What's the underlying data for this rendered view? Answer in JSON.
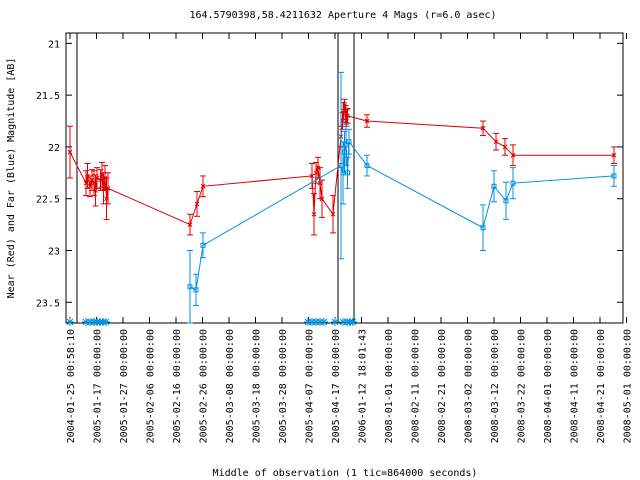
{
  "chart_data": {
    "type": "line",
    "title": "164.5790398,58.4211632   Aperture 4 Mags (r=6.0 asec)",
    "xlabel": "Middle of observation (1 tic=864000 seconds)",
    "ylabel": "Near (Red) and Far (Blue) Magnitude [AB]",
    "ylim": [
      23.7,
      20.9
    ],
    "y_inverted": true,
    "yticks": [
      "21",
      "21.5",
      "22",
      "22.5",
      "23",
      "23.5"
    ],
    "grid": false,
    "x_tick_labels": [
      "2004-01-25 00:58:10",
      "2005-01-17 00:00:00",
      "2005-01-27 00:00:00",
      "2005-02-06 00:00:00",
      "2005-02-16 00:00:00",
      "2005-02-26 00:00:00",
      "2005-03-08 00:00:00",
      "2005-03-18 00:00:00",
      "2005-03-28 00:00:00",
      "2005-04-07 00:00:00",
      "2005-04-17 00:00:00",
      "2006-01-12 18:01:43",
      "2008-01-01 00:00:00",
      "2008-02-11 00:00:00",
      "2008-02-21 00:00:00",
      "2008-03-02 00:00:00",
      "2008-03-12 00:00:00",
      "2008-03-22 00:00:00",
      "2008-04-01 00:00:00",
      "2008-04-11 00:00:00",
      "2008-04-21 00:00:00",
      "2008-05-01 00:00:00"
    ],
    "series": [
      {
        "color": "#e00000",
        "marker": "x",
        "points": [
          {
            "t": 0.0,
            "y": 22.05,
            "err": 0.25
          },
          {
            "t": 1.6,
            "y": 22.35,
            "err": 0.12
          },
          {
            "t": 1.75,
            "y": 22.28,
            "err": 0.12
          },
          {
            "t": 2.0,
            "y": 22.38,
            "err": 0.1
          },
          {
            "t": 2.2,
            "y": 22.32,
            "err": 0.1
          },
          {
            "t": 2.4,
            "y": 22.35,
            "err": 0.12
          },
          {
            "t": 2.55,
            "y": 22.42,
            "err": 0.15
          },
          {
            "t": 2.7,
            "y": 22.3,
            "err": 0.1
          },
          {
            "t": 3.05,
            "y": 22.32,
            "err": 0.1
          },
          {
            "t": 3.2,
            "y": 22.27,
            "err": 0.12
          },
          {
            "t": 3.35,
            "y": 22.4,
            "err": 0.15
          },
          {
            "t": 3.5,
            "y": 22.3,
            "err": 0.12
          },
          {
            "t": 3.65,
            "y": 22.5,
            "err": 0.2
          },
          {
            "t": 3.8,
            "y": 22.4,
            "err": 0.15
          },
          {
            "t": 12.0,
            "y": 22.75,
            "err": 0.1
          },
          {
            "t": 12.7,
            "y": 22.55,
            "err": 0.12
          },
          {
            "t": 13.3,
            "y": 22.38,
            "err": 0.1
          },
          {
            "t": 24.2,
            "y": 22.28,
            "err": 0.12
          },
          {
            "t": 24.4,
            "y": 22.65,
            "err": 0.2
          },
          {
            "t": 24.6,
            "y": 22.25,
            "err": 0.1
          },
          {
            "t": 24.8,
            "y": 22.2,
            "err": 0.1
          },
          {
            "t": 25.0,
            "y": 22.35,
            "err": 0.15
          },
          {
            "t": 25.2,
            "y": 22.5,
            "err": 0.18
          },
          {
            "t": 26.3,
            "y": 22.65,
            "err": 0.18
          },
          {
            "t": 27.1,
            "y": 21.9,
            "err": 0.1
          },
          {
            "t": 27.25,
            "y": 21.75,
            "err": 0.08
          },
          {
            "t": 27.35,
            "y": 21.65,
            "err": 0.08
          },
          {
            "t": 27.45,
            "y": 21.6,
            "err": 0.06
          },
          {
            "t": 27.55,
            "y": 21.68,
            "err": 0.08
          },
          {
            "t": 27.65,
            "y": 21.72,
            "err": 0.08
          },
          {
            "t": 27.75,
            "y": 21.7,
            "err": 0.07
          },
          {
            "t": 29.7,
            "y": 21.75,
            "err": 0.06
          },
          {
            "t": 41.3,
            "y": 21.82,
            "err": 0.07
          },
          {
            "t": 42.6,
            "y": 21.95,
            "err": 0.08
          },
          {
            "t": 43.5,
            "y": 22.0,
            "err": 0.08
          },
          {
            "t": 44.3,
            "y": 22.08,
            "err": 0.1
          },
          {
            "t": 54.4,
            "y": 22.08,
            "err": 0.08
          }
        ]
      },
      {
        "color": "#0090e0",
        "marker": "square",
        "points": [
          {
            "t": 12.0,
            "y": 23.35,
            "err": 0.35
          },
          {
            "t": 12.6,
            "y": 23.38,
            "err": 0.15
          },
          {
            "t": 13.3,
            "y": 22.95,
            "err": 0.12
          },
          {
            "t": 27.1,
            "y": 22.18,
            "err": 0.9
          },
          {
            "t": 27.3,
            "y": 22.25,
            "err": 0.3
          },
          {
            "t": 27.45,
            "y": 22.05,
            "err": 0.2
          },
          {
            "t": 27.6,
            "y": 21.98,
            "err": 0.2
          },
          {
            "t": 27.75,
            "y": 22.25,
            "err": 0.15
          },
          {
            "t": 27.9,
            "y": 21.95,
            "err": 0.12
          },
          {
            "t": 29.7,
            "y": 22.18,
            "err": 0.1
          },
          {
            "t": 41.3,
            "y": 22.78,
            "err": 0.22
          },
          {
            "t": 42.4,
            "y": 22.38,
            "err": 0.15
          },
          {
            "t": 43.6,
            "y": 22.52,
            "err": 0.18
          },
          {
            "t": 44.3,
            "y": 22.35,
            "err": 0.15
          },
          {
            "t": 54.4,
            "y": 22.28,
            "err": 0.1
          }
        ]
      }
    ],
    "x_markers_at_bottom": [
      0.0,
      1.6,
      2.0,
      2.4,
      2.7,
      3.0,
      3.3,
      3.6,
      23.8,
      24.2,
      24.6,
      25.0,
      25.4,
      26.5,
      27.3,
      27.7,
      28.0,
      28.3
    ],
    "vertical_separators": [
      0.7,
      26.8,
      28.4
    ]
  }
}
